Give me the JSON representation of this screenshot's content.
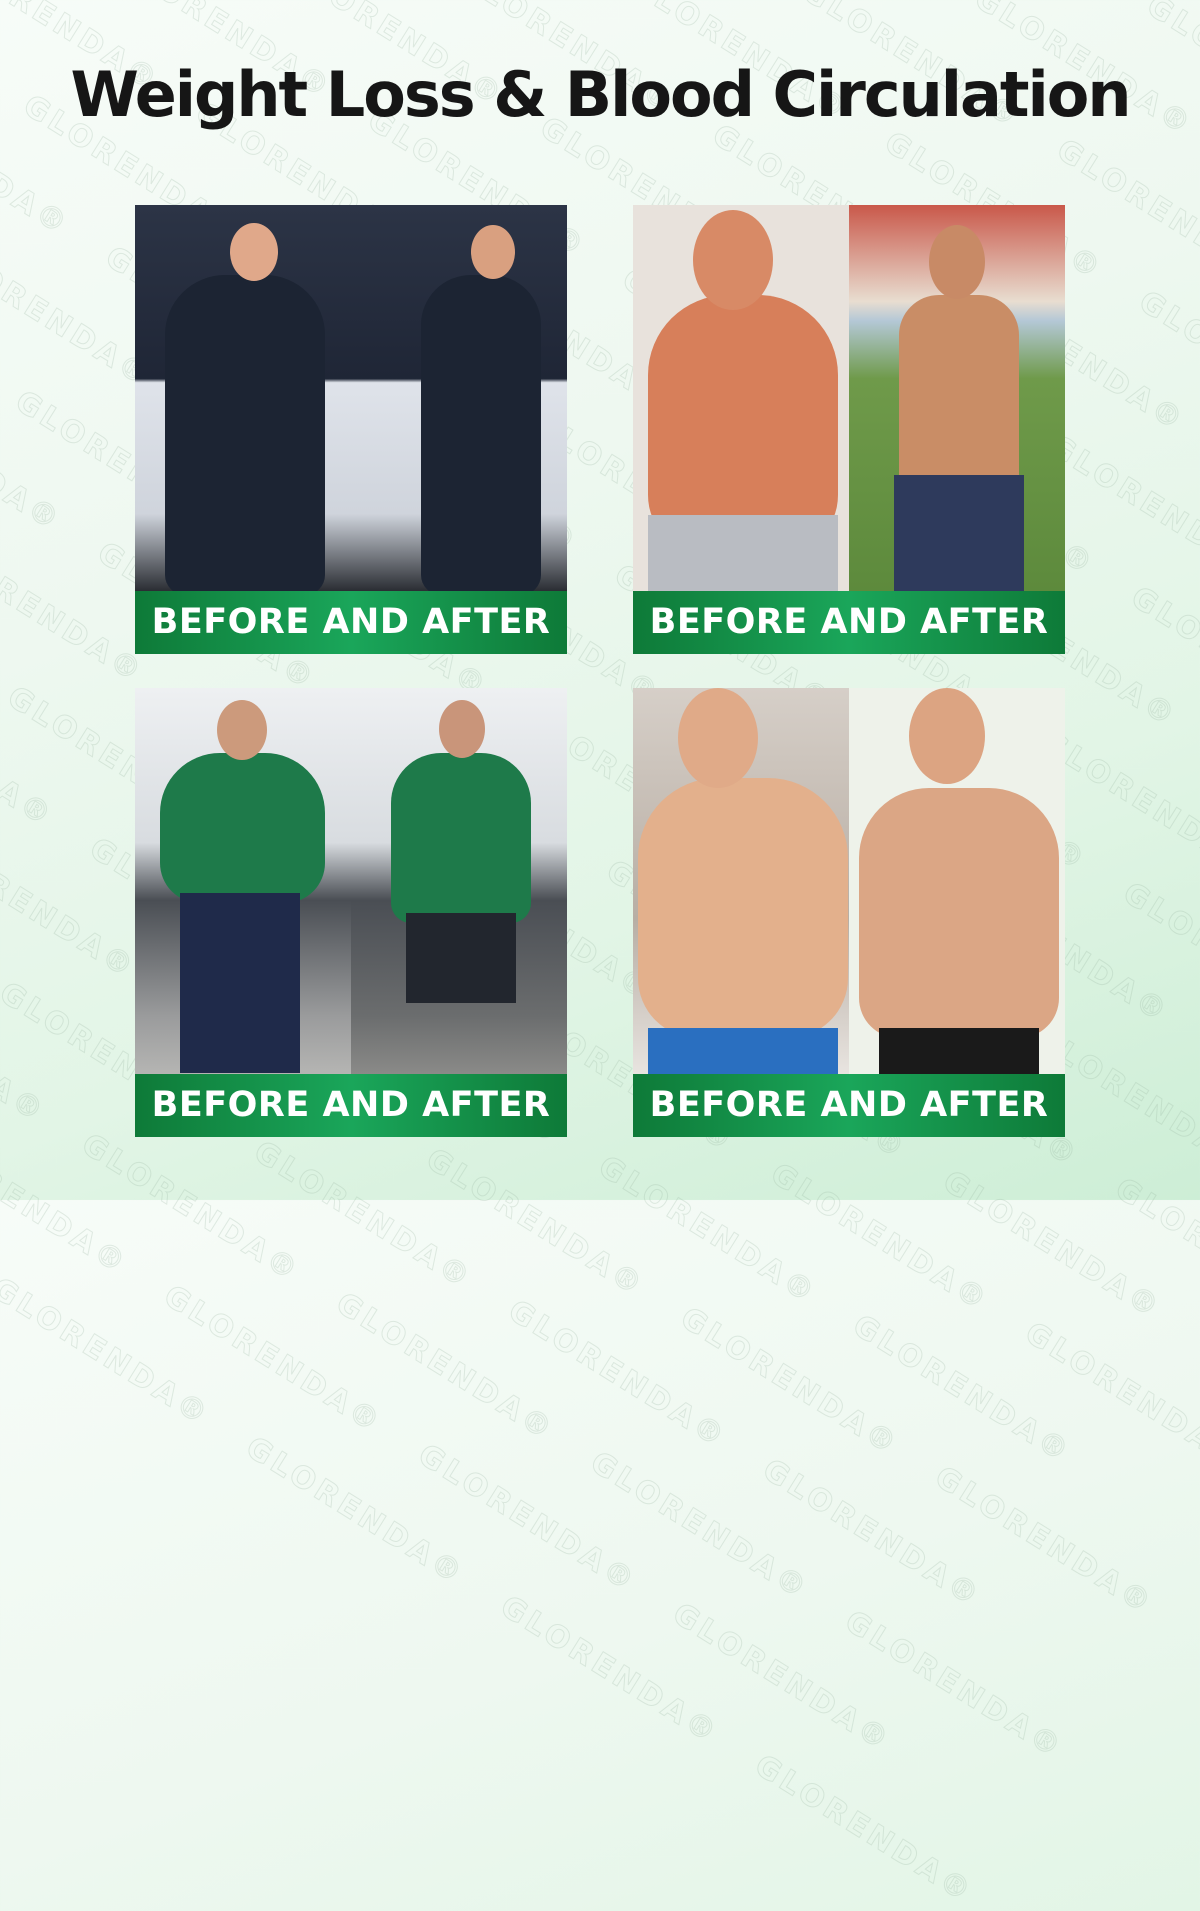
{
  "title": "Weight Loss & Blood Circulation",
  "watermark": "GLORENDA®",
  "colors": {
    "label_green": "#1aa65a",
    "label_green_dark": "#0e7a38",
    "title": "#161616"
  },
  "panels": [
    {
      "label": "BEFORE AND AFTER",
      "subject": "police officer"
    },
    {
      "label": "BEFORE AND AFTER",
      "subject": "shirtless man outdoors"
    },
    {
      "label": "BEFORE AND AFTER",
      "subject": "man in green polo by truck"
    },
    {
      "label": "BEFORE AND AFTER",
      "subject": "shirtless man indoors"
    }
  ]
}
